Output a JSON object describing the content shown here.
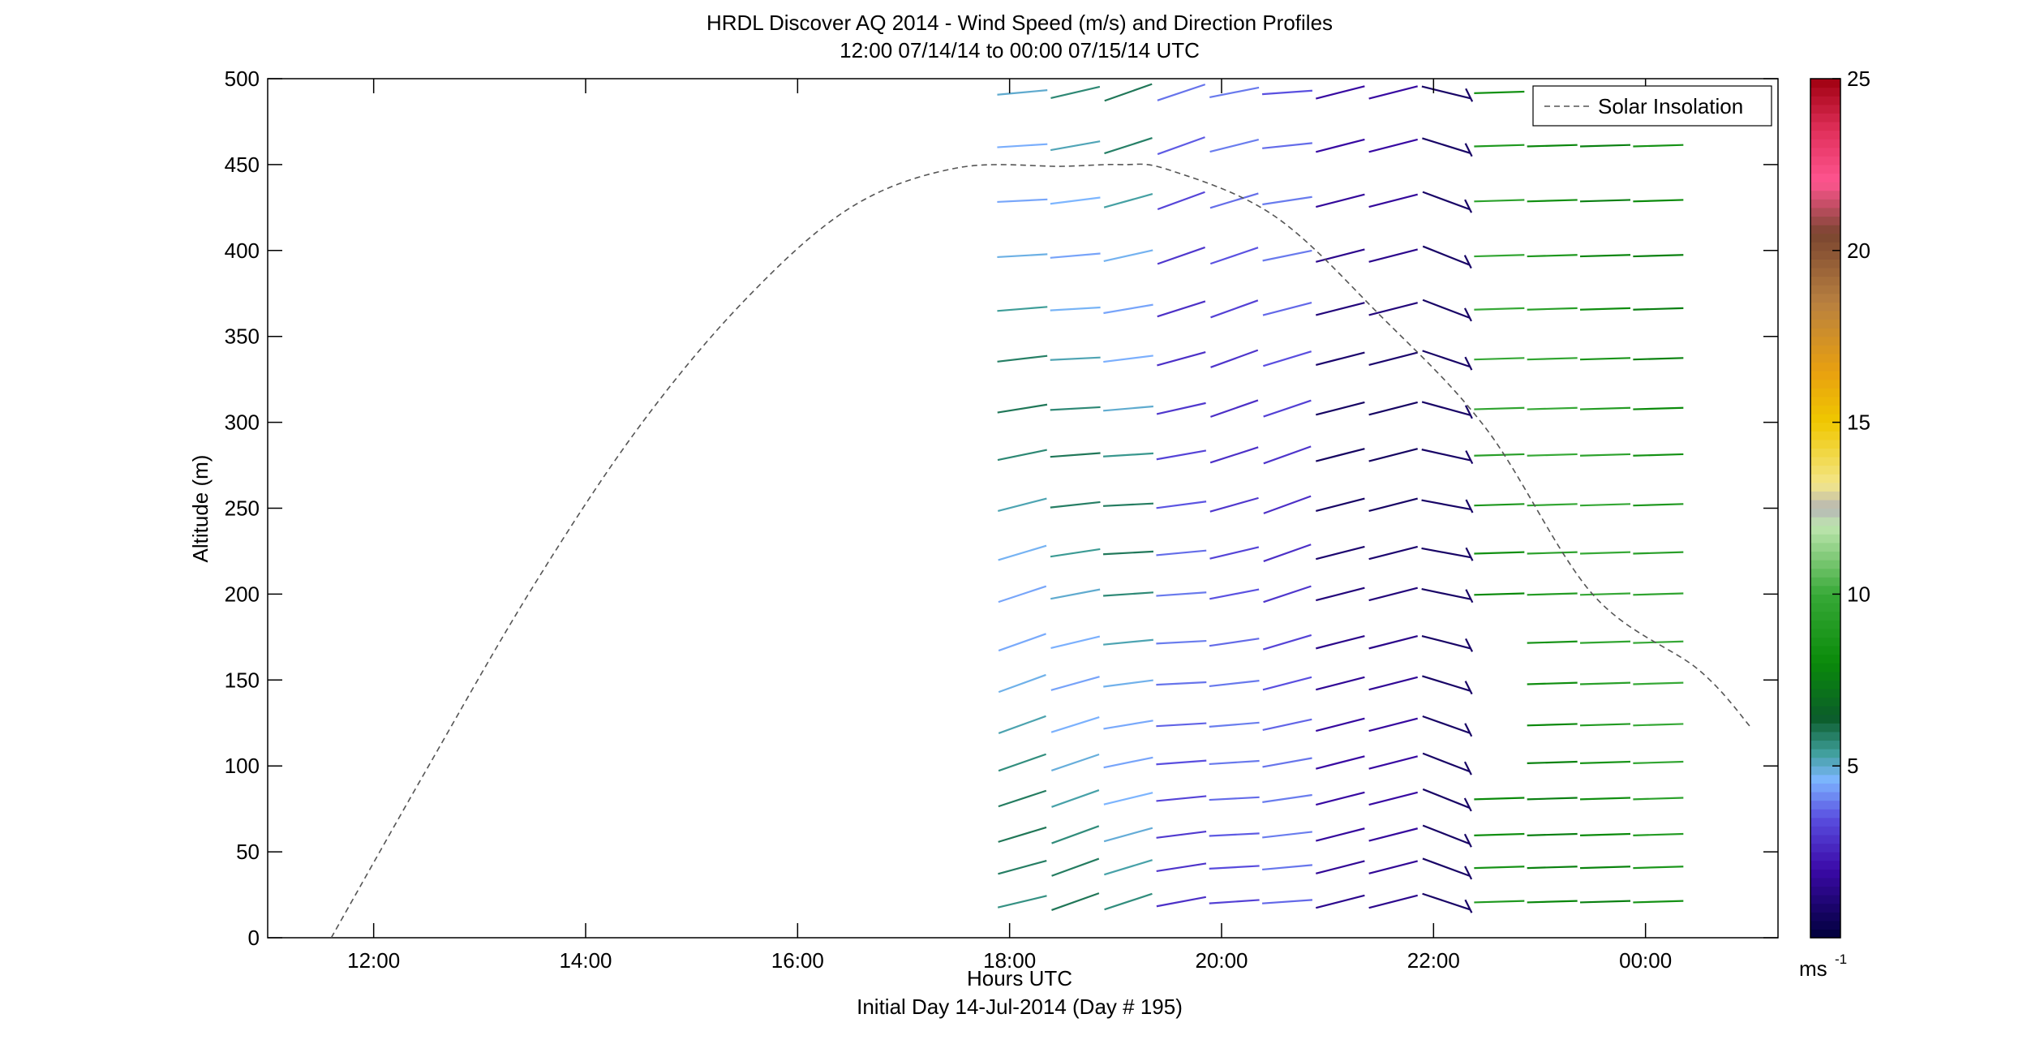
{
  "chart_data": {
    "type": "line",
    "title": "HRDL Discover AQ 2014 - Wind Speed (m/s) and Direction Profiles",
    "subtitle": "12:00 07/14/14 to 00:00 07/15/14  UTC",
    "xlabel": "Hours UTC",
    "xlabel2": "Initial Day 14-Jul-2014 (Day # 195)",
    "ylabel": "Altitude (m)",
    "xlim": [
      11.0,
      25.25
    ],
    "ylim": [
      0,
      500
    ],
    "x_ticks": [
      {
        "value": 12,
        "label": "12:00"
      },
      {
        "value": 14,
        "label": "14:00"
      },
      {
        "value": 16,
        "label": "16:00"
      },
      {
        "value": 18,
        "label": "18:00"
      },
      {
        "value": 20,
        "label": "20:00"
      },
      {
        "value": 22,
        "label": "22:00"
      },
      {
        "value": 24,
        "label": "00:00"
      }
    ],
    "y_ticks": [
      {
        "value": 0,
        "label": "0"
      },
      {
        "value": 50,
        "label": "50"
      },
      {
        "value": 100,
        "label": "100"
      },
      {
        "value": 150,
        "label": "150"
      },
      {
        "value": 200,
        "label": "200"
      },
      {
        "value": 250,
        "label": "250"
      },
      {
        "value": 300,
        "label": "300"
      },
      {
        "value": 350,
        "label": "350"
      },
      {
        "value": 400,
        "label": "400"
      },
      {
        "value": 450,
        "label": "450"
      },
      {
        "value": 500,
        "label": "500"
      }
    ],
    "legend": {
      "placement": "top-right",
      "entries": [
        {
          "label": "Solar Insolation",
          "style": "dashed",
          "color": "#555555"
        }
      ]
    },
    "solar_insolation": {
      "name": "Solar Insolation",
      "x": [
        11.6,
        12.5,
        13.5,
        14.5,
        15.5,
        16.5,
        17.5,
        18.5,
        19.05,
        19.5,
        20.5,
        21.5,
        22.5,
        23.5,
        24.5,
        25.0
      ],
      "y": [
        0,
        98,
        204,
        297,
        371,
        425,
        448,
        449,
        450,
        447,
        420,
        362,
        296,
        200,
        156,
        122
      ]
    },
    "barb_altitudes": [
      21,
      41,
      60,
      81,
      102,
      124,
      148,
      172,
      200,
      224,
      252,
      281,
      308,
      337,
      366,
      397,
      429,
      461,
      492
    ],
    "barb_times": [
      18.12,
      18.62,
      19.12,
      19.62,
      20.12,
      20.62,
      21.12,
      21.62,
      22.12,
      22.62,
      23.12,
      23.62,
      24.12
    ],
    "colorbar": {
      "min": 0,
      "max": 25,
      "unit_label": "ms",
      "unit_exponent": "-1",
      "ticks": [
        {
          "value": 5,
          "label": "5"
        },
        {
          "value": 10,
          "label": "10"
        },
        {
          "value": 15,
          "label": "15"
        },
        {
          "value": 20,
          "label": "20"
        },
        {
          "value": 25,
          "label": "25"
        }
      ],
      "stops": [
        {
          "v": 0,
          "c": "#00003a"
        },
        {
          "v": 2,
          "c": "#3b0aa8"
        },
        {
          "v": 3.5,
          "c": "#5a4fe0"
        },
        {
          "v": 4.6,
          "c": "#7db6ff"
        },
        {
          "v": 5.4,
          "c": "#3f9e9a"
        },
        {
          "v": 6.4,
          "c": "#0b5c2a"
        },
        {
          "v": 8,
          "c": "#0a8a0a"
        },
        {
          "v": 10,
          "c": "#37a937"
        },
        {
          "v": 12,
          "c": "#bfe6b0"
        },
        {
          "v": 12.5,
          "c": "#b5b5b5"
        },
        {
          "v": 13.2,
          "c": "#f3e68a"
        },
        {
          "v": 15,
          "c": "#f0c800"
        },
        {
          "v": 16.5,
          "c": "#e8a010"
        },
        {
          "v": 18.5,
          "c": "#b88040"
        },
        {
          "v": 20.5,
          "c": "#7a4530"
        },
        {
          "v": 22,
          "c": "#ff5590"
        },
        {
          "v": 23.5,
          "c": "#e0305a"
        },
        {
          "v": 25,
          "c": "#a00010"
        }
      ]
    }
  }
}
